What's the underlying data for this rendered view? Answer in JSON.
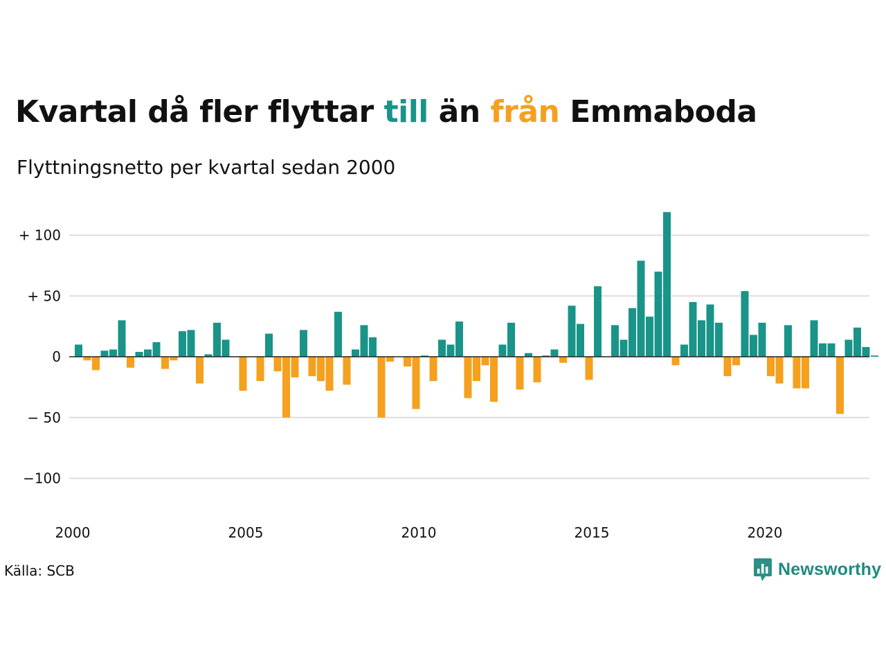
{
  "title": {
    "part1": "Kvartal då fler flyttar ",
    "highlight_in": "till",
    "part2": " än ",
    "highlight_out": "från",
    "part3": " Emmaboda"
  },
  "subtitle": "Flyttningsnetto per kvartal sedan 2000",
  "source": "Källa: SCB",
  "brand": "Newsworthy",
  "colors": {
    "positive": "#1a9488",
    "negative": "#f5a01e",
    "grid": "#dddddd",
    "text": "#111111"
  },
  "chart_data": {
    "type": "bar",
    "ylim": [
      -125,
      120
    ],
    "y_ticks": [
      {
        "value": 100,
        "label": "+ 100"
      },
      {
        "value": 50,
        "label": "+  50"
      },
      {
        "value": 0,
        "label": "0"
      },
      {
        "value": -50,
        "label": "− 50"
      },
      {
        "value": -100,
        "label": "−100"
      }
    ],
    "x_ticks": [
      "2000",
      "2005",
      "2010",
      "2015",
      "2020"
    ],
    "start_year": 2000,
    "values": [
      10,
      -3,
      -11,
      5,
      6,
      30,
      -9,
      4,
      6,
      12,
      -10,
      -3,
      21,
      22,
      -22,
      2,
      28,
      14,
      0,
      -28,
      0,
      -20,
      19,
      -12,
      -50,
      -17,
      22,
      -16,
      -20,
      -28,
      37,
      -23,
      6,
      26,
      16,
      -50,
      -4,
      0,
      -8,
      -43,
      1,
      -20,
      14,
      10,
      29,
      -34,
      -20,
      -7,
      -37,
      10,
      28,
      -27,
      3,
      -21,
      1,
      6,
      -5,
      42,
      27,
      -19,
      58,
      0,
      26,
      14,
      40,
      79,
      33,
      70,
      119,
      -7,
      10,
      45,
      30,
      43,
      28,
      -16,
      -7,
      54,
      18,
      28,
      -16,
      -22,
      26,
      -26,
      -26,
      30,
      11,
      11,
      -47,
      14,
      24,
      8,
      1
    ]
  }
}
